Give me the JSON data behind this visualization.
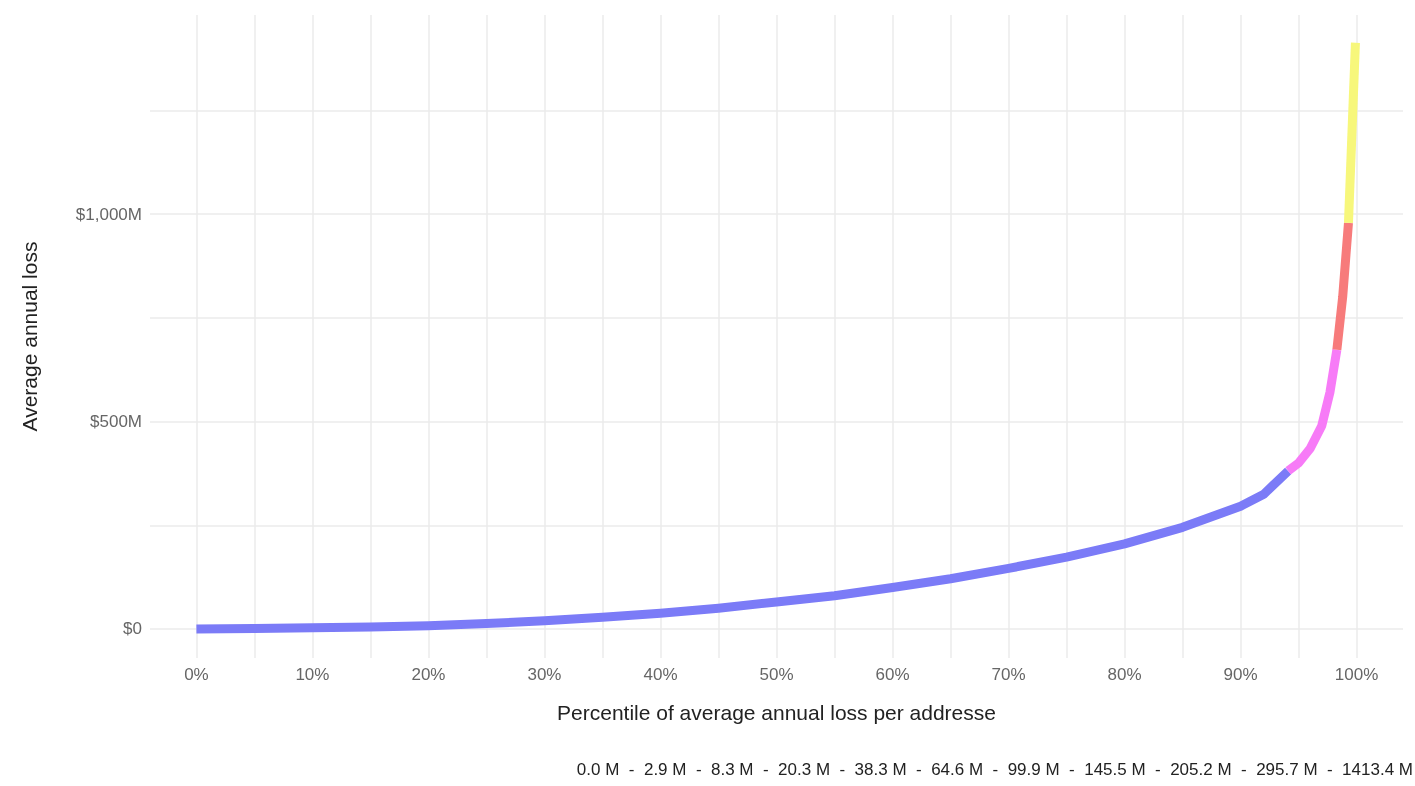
{
  "chart_data": {
    "type": "line",
    "xlabel": "Percentile of average annual loss per addresse",
    "ylabel": "Average annual loss",
    "annotations": [
      "0.0 M  -  2.9 M  -  8.3 M  -  20.3 M  -  38.3 M  -  64.6 M  -  99.9 M  -  145.5 M  -  205.2 M  -  295.7 M  -  1413.4 M"
    ],
    "series": [
      {
        "color": "#7b7bf7",
        "x": [
          0,
          5,
          10,
          15,
          20,
          25,
          30,
          35,
          40,
          45,
          50,
          55,
          60,
          65,
          70,
          75,
          80,
          85,
          90,
          92,
          94.1
        ],
        "values": [
          0,
          1,
          3,
          5,
          8,
          13,
          20,
          28,
          38,
          50,
          65,
          80,
          100,
          121,
          146,
          173,
          205,
          245,
          296,
          325,
          381
        ]
      },
      {
        "color": "#f77bf7",
        "x": [
          94.1,
          95,
          96,
          97,
          97.7,
          98.3
        ],
        "values": [
          381,
          400,
          435,
          490,
          570,
          673
        ]
      },
      {
        "color": "#f77b7b",
        "x": [
          98.3,
          98.8,
          99.3
        ],
        "values": [
          673,
          800,
          979
        ]
      },
      {
        "color": "#f7f77b",
        "x": [
          99.3,
          99.9
        ],
        "values": [
          979,
          1413
        ]
      }
    ],
    "xlim": [
      -4,
      104
    ],
    "ylim": [
      -70,
      1480
    ],
    "xticks": [
      {
        "value": 0,
        "label": "0%"
      },
      {
        "value": 5,
        "label": null
      },
      {
        "value": 10,
        "label": "10%"
      },
      {
        "value": 15,
        "label": null
      },
      {
        "value": 20,
        "label": "20%"
      },
      {
        "value": 25,
        "label": null
      },
      {
        "value": 30,
        "label": "30%"
      },
      {
        "value": 35,
        "label": null
      },
      {
        "value": 40,
        "label": "40%"
      },
      {
        "value": 45,
        "label": null
      },
      {
        "value": 50,
        "label": "50%"
      },
      {
        "value": 55,
        "label": null
      },
      {
        "value": 60,
        "label": "60%"
      },
      {
        "value": 65,
        "label": null
      },
      {
        "value": 70,
        "label": "70%"
      },
      {
        "value": 75,
        "label": null
      },
      {
        "value": 80,
        "label": "80%"
      },
      {
        "value": 85,
        "label": null
      },
      {
        "value": 90,
        "label": "90%"
      },
      {
        "value": 95,
        "label": null
      },
      {
        "value": 100,
        "label": "100%"
      }
    ],
    "yticks": [
      {
        "value": 0,
        "label": "$0"
      },
      {
        "value": 250,
        "label": null
      },
      {
        "value": 500,
        "label": "$500M"
      },
      {
        "value": 750,
        "label": null
      },
      {
        "value": 1000,
        "label": "$1,000M"
      },
      {
        "value": 1250,
        "label": null
      }
    ],
    "grid": true,
    "marker": "none",
    "line_style": "solid"
  }
}
